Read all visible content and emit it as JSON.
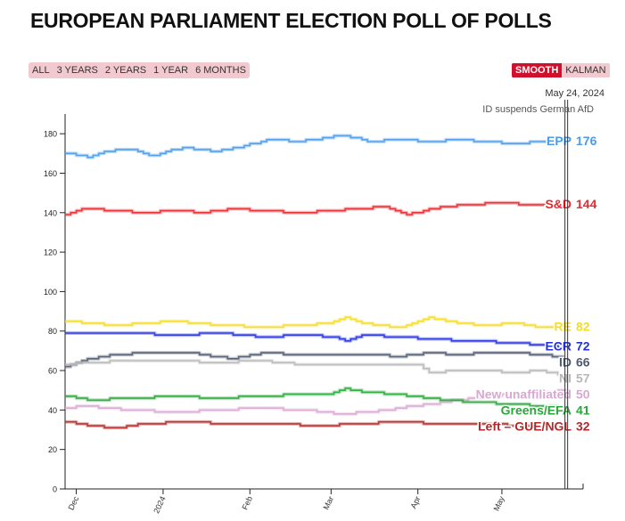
{
  "page": {
    "title": "EUROPEAN PARLIAMENT ELECTION POLL OF POLLS",
    "range_buttons": [
      "ALL",
      "3 YEARS",
      "2 YEARS",
      "1 YEAR",
      "6 MONTHS"
    ],
    "mode_buttons": {
      "active": "SMOOTH",
      "inactive": "KALMAN"
    }
  },
  "chart_data": {
    "type": "line",
    "title": "EUROPEAN PARLIAMENT ELECTION POLL OF POLLS",
    "xlabel": "",
    "ylabel": "",
    "ylim": [
      0,
      190
    ],
    "yticks": [
      0,
      20,
      40,
      60,
      80,
      100,
      120,
      140,
      160,
      180
    ],
    "x_range": [
      "2023-11-27",
      "2024-05-30"
    ],
    "x_ticks": [
      {
        "date": "2023-12-01",
        "label": "Dec"
      },
      {
        "date": "2024-01-01",
        "label": "2024"
      },
      {
        "date": "2024-02-01",
        "label": "Feb"
      },
      {
        "date": "2024-03-01",
        "label": "Mar"
      },
      {
        "date": "2024-04-01",
        "label": "Apr"
      },
      {
        "date": "2024-05-01",
        "label": "May"
      }
    ],
    "grid": false,
    "annotation": {
      "date": "2024-05-24",
      "label": "May 24, 2024",
      "text": "ID suspends German AfD"
    },
    "series": [
      {
        "name": "EPP",
        "color": "#4a9be8",
        "final": 176,
        "points": [
          [
            "2023-11-27",
            170
          ],
          [
            "2023-12-05",
            168
          ],
          [
            "2023-12-10",
            171
          ],
          [
            "2023-12-20",
            172
          ],
          [
            "2023-12-28",
            169
          ],
          [
            "2024-01-08",
            173
          ],
          [
            "2024-01-20",
            171
          ],
          [
            "2024-01-30",
            174
          ],
          [
            "2024-02-08",
            177
          ],
          [
            "2024-02-18",
            176
          ],
          [
            "2024-02-28",
            178
          ],
          [
            "2024-03-05",
            179
          ],
          [
            "2024-03-15",
            176
          ],
          [
            "2024-03-25",
            177
          ],
          [
            "2024-04-05",
            176
          ],
          [
            "2024-04-15",
            177
          ],
          [
            "2024-04-25",
            176
          ],
          [
            "2024-05-05",
            175
          ],
          [
            "2024-05-15",
            176
          ],
          [
            "2024-05-24",
            176
          ]
        ]
      },
      {
        "name": "S&D",
        "color": "#e8282e",
        "final": 144,
        "points": [
          [
            "2023-11-27",
            139
          ],
          [
            "2023-12-03",
            142
          ],
          [
            "2023-12-15",
            141
          ],
          [
            "2023-12-25",
            140
          ],
          [
            "2024-01-05",
            141
          ],
          [
            "2024-01-15",
            140
          ],
          [
            "2024-01-25",
            142
          ],
          [
            "2024-02-05",
            141
          ],
          [
            "2024-02-20",
            140
          ],
          [
            "2024-03-01",
            141
          ],
          [
            "2024-03-10",
            142
          ],
          [
            "2024-03-20",
            143
          ],
          [
            "2024-03-28",
            139
          ],
          [
            "2024-04-03",
            141
          ],
          [
            "2024-04-10",
            143
          ],
          [
            "2024-04-20",
            144
          ],
          [
            "2024-04-30",
            145
          ],
          [
            "2024-05-10",
            144
          ],
          [
            "2024-05-24",
            144
          ]
        ]
      },
      {
        "name": "RE",
        "color": "#f5dc2a",
        "final": 82,
        "points": [
          [
            "2023-11-27",
            85
          ],
          [
            "2023-12-05",
            84
          ],
          [
            "2023-12-15",
            83
          ],
          [
            "2023-12-25",
            84
          ],
          [
            "2024-01-05",
            85
          ],
          [
            "2024-01-20",
            83
          ],
          [
            "2024-02-05",
            82
          ],
          [
            "2024-02-20",
            83
          ],
          [
            "2024-03-01",
            84
          ],
          [
            "2024-03-05",
            87
          ],
          [
            "2024-03-12",
            84
          ],
          [
            "2024-03-25",
            82
          ],
          [
            "2024-04-05",
            87
          ],
          [
            "2024-04-15",
            84
          ],
          [
            "2024-04-25",
            83
          ],
          [
            "2024-05-05",
            84
          ],
          [
            "2024-05-15",
            82
          ],
          [
            "2024-05-24",
            82
          ]
        ]
      },
      {
        "name": "ECR",
        "color": "#2430e0",
        "final": 72,
        "points": [
          [
            "2023-11-27",
            79
          ],
          [
            "2023-12-05",
            79
          ],
          [
            "2023-12-20",
            79
          ],
          [
            "2024-01-05",
            78
          ],
          [
            "2024-01-20",
            79
          ],
          [
            "2024-02-05",
            77
          ],
          [
            "2024-02-20",
            78
          ],
          [
            "2024-03-01",
            77
          ],
          [
            "2024-03-07",
            75
          ],
          [
            "2024-03-12",
            78
          ],
          [
            "2024-03-25",
            77
          ],
          [
            "2024-04-05",
            76
          ],
          [
            "2024-04-20",
            75
          ],
          [
            "2024-05-05",
            74
          ],
          [
            "2024-05-15",
            73
          ],
          [
            "2024-05-24",
            72
          ]
        ]
      },
      {
        "name": "ID",
        "color": "#4f5a6e",
        "final": 66,
        "points": [
          [
            "2023-11-27",
            62
          ],
          [
            "2023-12-05",
            66
          ],
          [
            "2023-12-15",
            68
          ],
          [
            "2023-12-25",
            69
          ],
          [
            "2024-01-10",
            69
          ],
          [
            "2024-01-25",
            66
          ],
          [
            "2024-02-05",
            69
          ],
          [
            "2024-02-20",
            68
          ],
          [
            "2024-03-01",
            68
          ],
          [
            "2024-03-15",
            68
          ],
          [
            "2024-03-25",
            67
          ],
          [
            "2024-04-05",
            69
          ],
          [
            "2024-04-15",
            68
          ],
          [
            "2024-04-25",
            69
          ],
          [
            "2024-05-05",
            69
          ],
          [
            "2024-05-15",
            68
          ],
          [
            "2024-05-24",
            66
          ]
        ]
      },
      {
        "name": "NI",
        "color": "#b8b8b8",
        "final": 57,
        "points": [
          [
            "2023-11-27",
            63
          ],
          [
            "2023-12-05",
            64
          ],
          [
            "2023-12-20",
            65
          ],
          [
            "2024-01-05",
            65
          ],
          [
            "2024-01-20",
            64
          ],
          [
            "2024-02-05",
            65
          ],
          [
            "2024-02-20",
            63
          ],
          [
            "2024-03-05",
            63
          ],
          [
            "2024-03-20",
            63
          ],
          [
            "2024-04-01",
            63
          ],
          [
            "2024-04-05",
            59
          ],
          [
            "2024-04-15",
            60
          ],
          [
            "2024-04-25",
            60
          ],
          [
            "2024-05-05",
            59
          ],
          [
            "2024-05-15",
            60
          ],
          [
            "2024-05-24",
            57
          ]
        ]
      },
      {
        "name": "New unaffiliated",
        "color": "#d8a8d2",
        "final": 50,
        "points": [
          [
            "2023-11-27",
            41
          ],
          [
            "2023-12-05",
            42
          ],
          [
            "2023-12-20",
            40
          ],
          [
            "2024-01-05",
            39
          ],
          [
            "2024-01-20",
            40
          ],
          [
            "2024-02-05",
            41
          ],
          [
            "2024-02-20",
            40
          ],
          [
            "2024-03-05",
            38
          ],
          [
            "2024-03-20",
            40
          ],
          [
            "2024-04-05",
            43
          ],
          [
            "2024-04-15",
            45
          ],
          [
            "2024-04-25",
            47
          ],
          [
            "2024-05-05",
            48
          ],
          [
            "2024-05-15",
            49
          ],
          [
            "2024-05-24",
            50
          ]
        ]
      },
      {
        "name": "Greens/EFA",
        "color": "#28a83a",
        "final": 41,
        "points": [
          [
            "2023-11-27",
            47
          ],
          [
            "2023-12-05",
            45
          ],
          [
            "2023-12-20",
            46
          ],
          [
            "2024-01-05",
            47
          ],
          [
            "2024-01-20",
            46
          ],
          [
            "2024-02-05",
            47
          ],
          [
            "2024-02-20",
            48
          ],
          [
            "2024-03-01",
            48
          ],
          [
            "2024-03-05",
            51
          ],
          [
            "2024-03-12",
            49
          ],
          [
            "2024-03-25",
            48
          ],
          [
            "2024-04-05",
            46
          ],
          [
            "2024-04-20",
            44
          ],
          [
            "2024-05-05",
            43
          ],
          [
            "2024-05-15",
            42
          ],
          [
            "2024-05-24",
            41
          ]
        ]
      },
      {
        "name": "Left – GUE/NGL",
        "color": "#b02a2a",
        "final": 32,
        "points": [
          [
            "2023-11-27",
            34
          ],
          [
            "2023-12-05",
            32
          ],
          [
            "2023-12-15",
            31
          ],
          [
            "2023-12-25",
            33
          ],
          [
            "2024-01-10",
            34
          ],
          [
            "2024-01-25",
            33
          ],
          [
            "2024-02-10",
            33
          ],
          [
            "2024-02-25",
            32
          ],
          [
            "2024-03-10",
            33
          ],
          [
            "2024-03-25",
            34
          ],
          [
            "2024-04-10",
            33
          ],
          [
            "2024-04-25",
            33
          ],
          [
            "2024-05-10",
            32
          ],
          [
            "2024-05-24",
            32
          ]
        ]
      }
    ]
  }
}
